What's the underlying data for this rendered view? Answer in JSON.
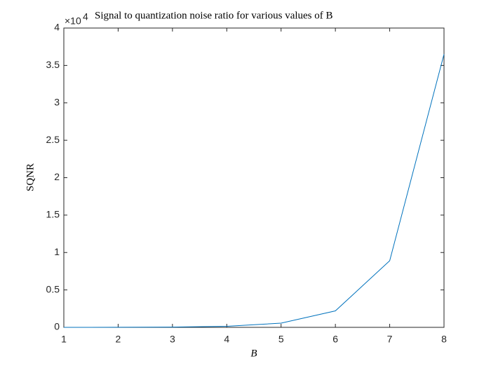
{
  "chart_data": {
    "type": "line",
    "title": "Signal to quantization noise ratio for various values of B",
    "xlabel": "B",
    "ylabel": "SQNR",
    "y_scale": {
      "base": "×10",
      "exponent": "4"
    },
    "x": [
      1,
      2,
      3,
      4,
      5,
      6,
      7,
      8
    ],
    "series": [
      {
        "name": "SQNR",
        "color": "#0072bd",
        "values": [
          0.0002,
          0.0009,
          0.0035,
          0.014,
          0.056,
          0.22,
          0.89,
          3.65
        ]
      }
    ],
    "xlim": [
      1,
      8
    ],
    "xticks": [
      1,
      2,
      3,
      4,
      5,
      6,
      7,
      8
    ],
    "ylim": [
      0,
      4
    ],
    "yticks": [
      0,
      0.5,
      1,
      1.5,
      2,
      2.5,
      3,
      3.5,
      4
    ],
    "grid": false
  }
}
